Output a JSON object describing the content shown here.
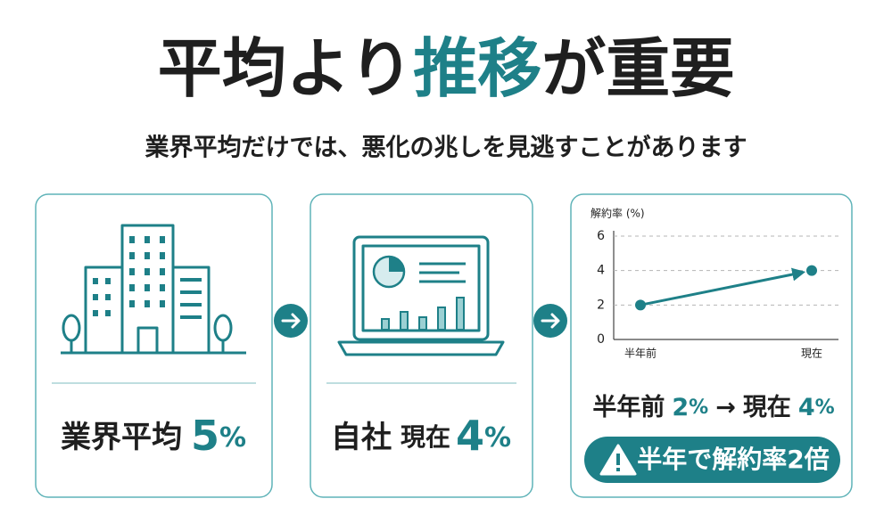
{
  "title": {
    "before": "平均より",
    "highlight": "推移",
    "after": "が重要"
  },
  "subtitle": "業界平均だけでは、悪化の兆しを見逃すことがあります",
  "card1": {
    "label": "業界平均",
    "value": "5",
    "unit": "%"
  },
  "card2": {
    "label": "自社",
    "sublabel": "現在",
    "value": "4",
    "unit": "%"
  },
  "card3": {
    "chart": {
      "type": "line",
      "y_label": "解約率 (%)",
      "categories": [
        "半年前",
        "現在"
      ],
      "values": [
        2,
        4
      ],
      "ylim": [
        0,
        6
      ],
      "yticks": [
        0,
        2,
        4,
        6
      ],
      "color": "#1e8088",
      "grid": true
    },
    "summary": {
      "from_label": "半年前",
      "from_value": "2",
      "from_unit": "%",
      "arrow": "→",
      "to_label": "現在",
      "to_value": "4",
      "to_unit": "%"
    },
    "badge": "半年で解約率2倍"
  }
}
